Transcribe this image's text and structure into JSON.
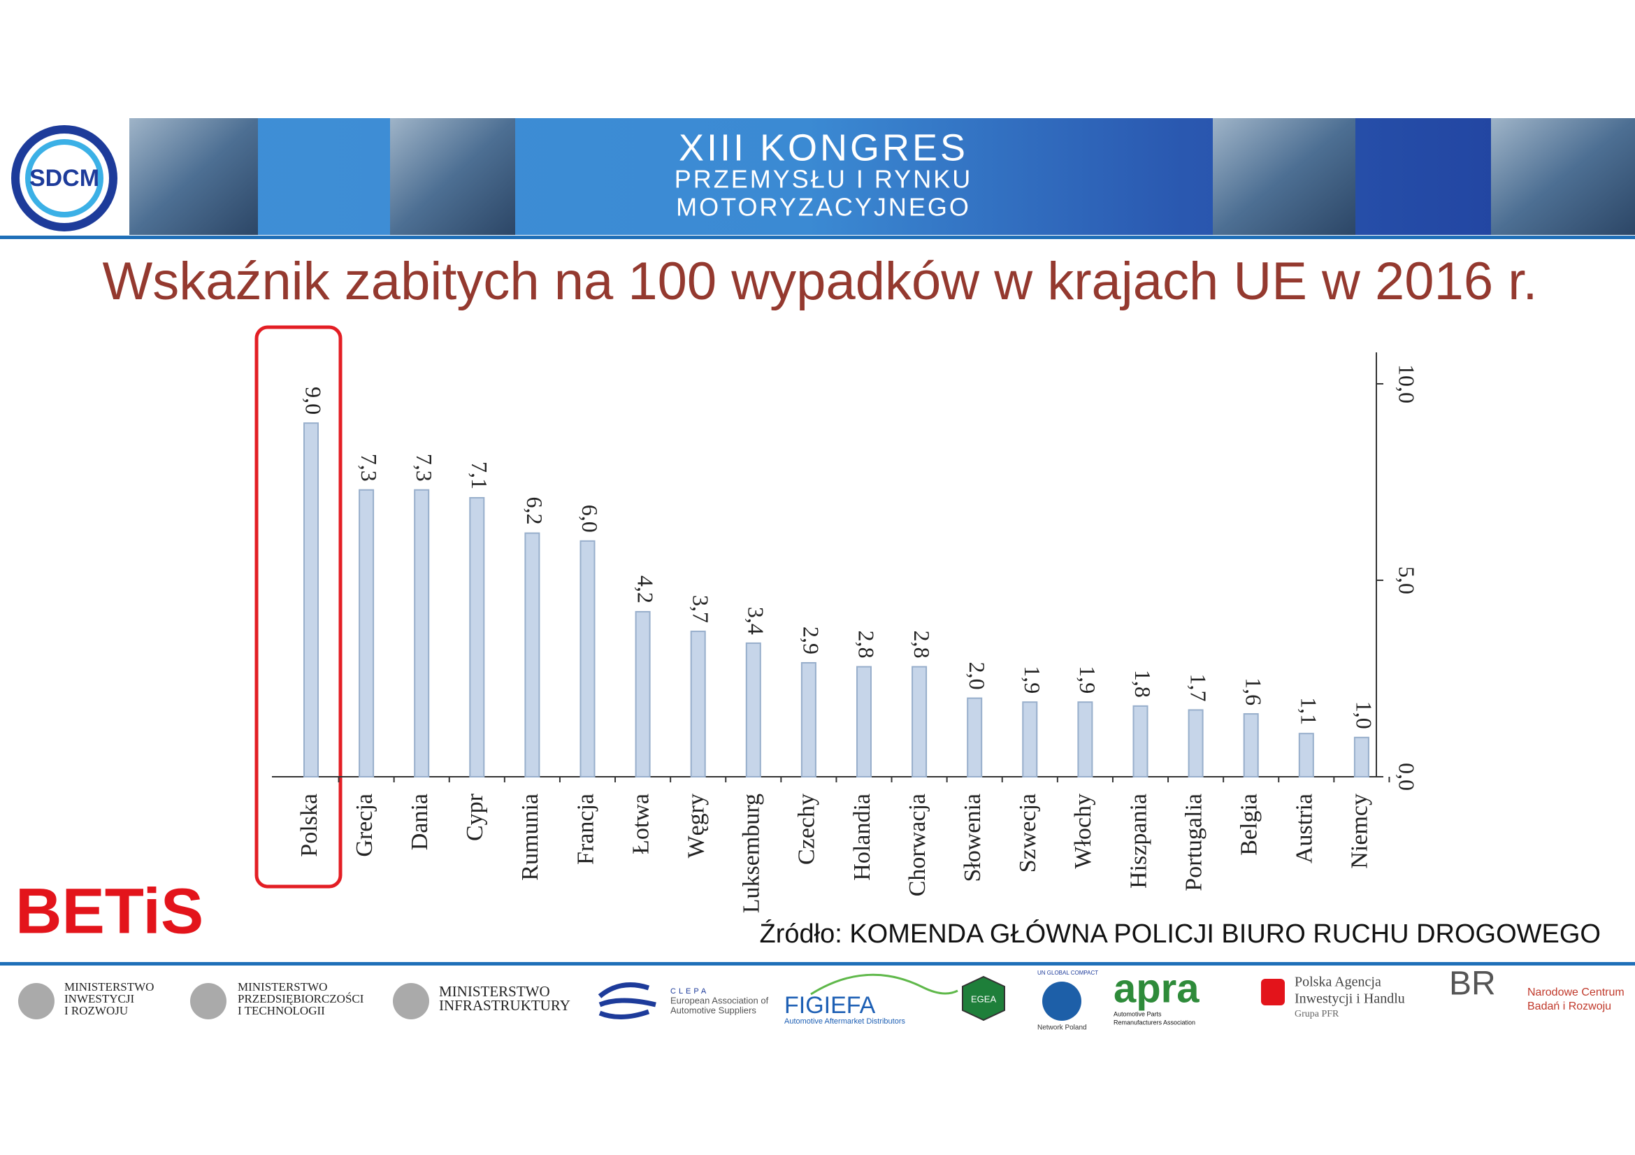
{
  "header": {
    "logo": "SDCM",
    "lines": [
      "XIII KONGRES",
      "PRZEMYSŁU I RYNKU",
      "MOTORYZACYJNEGO"
    ]
  },
  "chart_data": {
    "type": "bar",
    "title": "Wskaźnik zabitych na 100 wypadków w krajach UE w 2016 r.",
    "categories": [
      "Polska",
      "Grecja",
      "Dania",
      "Cypr",
      "Rumunia",
      "Francja",
      "Łotwa",
      "Węgry",
      "Luksemburg",
      "Czechy",
      "Holandia",
      "Chorwacja",
      "Słowenia",
      "Szwecja",
      "Włochy",
      "Hiszpania",
      "Portugalia",
      "Belgia",
      "Austria",
      "Niemcy"
    ],
    "values": [
      9.0,
      7.3,
      7.3,
      7.1,
      6.2,
      6.0,
      4.2,
      3.7,
      3.4,
      2.9,
      2.8,
      2.8,
      2.0,
      1.9,
      1.9,
      1.8,
      1.7,
      1.6,
      1.1,
      1.0
    ],
    "value_labels": [
      "9,0",
      "7,3",
      "7,3",
      "7,1",
      "6,2",
      "6,0",
      "4,2",
      "3,7",
      "3,4",
      "2,9",
      "2,8",
      "2,8",
      "2,0",
      "1,9",
      "1,9",
      "1,8",
      "1,7",
      "1,6",
      "1,1",
      "1,0"
    ],
    "color": "#c6d5e9",
    "ylim": [
      0,
      10.8
    ],
    "yticks": [
      {
        "value": 0,
        "label": "0,0"
      },
      {
        "value": 5,
        "label": "5,0"
      },
      {
        "value": 10,
        "label": "10,0"
      }
    ],
    "grid": false
  },
  "brand": "BETiS",
  "source": "Źródło: KOMENDA GŁÓWNA POLICJI BIURO RUCHU DROGOWEGO",
  "logos": [
    {
      "lines": [
        "MINISTERSTWO",
        "INWESTYCJI",
        "I ROZWOJU"
      ]
    },
    {
      "lines": [
        "MINISTERSTWO",
        "PRZEDSIĘBIORCZOŚCI",
        "I TECHNOLOGII"
      ]
    },
    {
      "lines": [
        "MINISTERSTWO",
        "INFRASTRUKTURY"
      ]
    },
    {
      "lines": [
        "CLEPA",
        "European Association of",
        "Automotive Suppliers"
      ]
    },
    {
      "lines": [
        "FIGIEFA",
        "Automotive Aftermarket Distributors"
      ]
    },
    {
      "lines": [
        "EGEA"
      ]
    },
    {
      "lines": [
        "UN GLOBAL COMPACT",
        "Network Poland"
      ]
    },
    {
      "lines": [
        "apra",
        "Automotive Parts",
        "Remanufacturers Association"
      ]
    },
    {
      "lines": [
        "Polska Agencja",
        "Inwestycji i Handlu",
        "Grupa PFR"
      ]
    },
    {
      "lines": [
        "BR",
        "Narodowe Centrum",
        "Badań i Rozwoju"
      ]
    }
  ]
}
